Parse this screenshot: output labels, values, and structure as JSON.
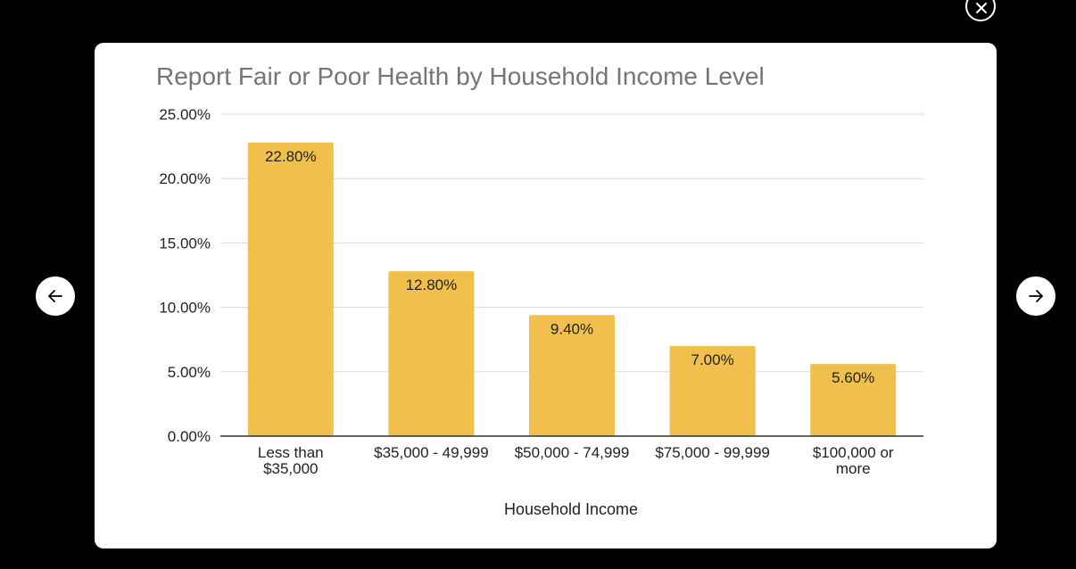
{
  "viewer": {
    "close_icon": "close-icon",
    "prev_icon": "arrow-left-icon",
    "next_icon": "arrow-right-icon"
  },
  "chart_data": {
    "type": "bar",
    "title": "Report Fair or Poor Health by Household Income Level",
    "xlabel": "Household Income",
    "ylabel": "",
    "categories": [
      [
        "Less than",
        "$35,000"
      ],
      [
        "$35,000 - 49,999"
      ],
      [
        "$50,000 - 74,999"
      ],
      [
        "$75,000 - 99,999"
      ],
      [
        "$100,000 or",
        "more"
      ]
    ],
    "values": [
      22.8,
      12.8,
      9.4,
      7.0,
      5.6
    ],
    "data_labels": [
      "22.80%",
      "12.80%",
      "9.40%",
      "7.00%",
      "5.60%"
    ],
    "y_ticks": [
      0,
      5,
      10,
      15,
      20,
      25
    ],
    "y_tick_labels": [
      "0.00%",
      "5.00%",
      "10.00%",
      "15.00%",
      "20.00%",
      "25.00%"
    ],
    "ylim": [
      0,
      25
    ],
    "grid": true,
    "legend": "none",
    "bar_color": "#F0BF4C",
    "gridline_color": "#D9D9D9",
    "axis_color": "#333333"
  }
}
